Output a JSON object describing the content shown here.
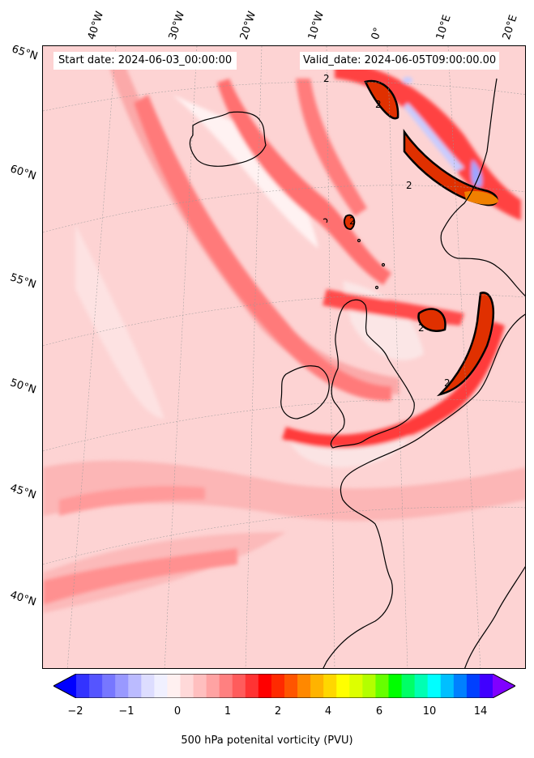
{
  "header": {
    "start_date": "Start date: 2024-06-03_00:00:00",
    "valid_date": "Valid_date: 2024-06-05T09:00:00.00"
  },
  "map": {
    "longitude_labels": [
      "40°W",
      "30°W",
      "20°W",
      "10°W",
      "0°",
      "10°E",
      "20°E"
    ],
    "latitude_labels": [
      "65°N",
      "60°N",
      "55°N",
      "50°N",
      "45°N",
      "40°N"
    ],
    "contour_label": "2",
    "background_color": "#fdd6d6"
  },
  "colorbar": {
    "ticks": [
      "−2",
      "−1",
      "0",
      "1",
      "2",
      "4",
      "6",
      "10",
      "14"
    ],
    "title": "500 hPa potenital vorticity (PVU)",
    "colors": [
      "#0000ff",
      "#3333ff",
      "#5555ff",
      "#7777ff",
      "#9999ff",
      "#bbbbff",
      "#ddddff",
      "#f0f0ff",
      "#fff0f0",
      "#ffd9d9",
      "#ffbfbf",
      "#ffa3a3",
      "#ff8080",
      "#ff5c5c",
      "#ff3333",
      "#ff0000",
      "#ff2a00",
      "#ff5500",
      "#ff8800",
      "#ffb300",
      "#ffd700",
      "#ffff00",
      "#ddff00",
      "#b3ff00",
      "#66ff00",
      "#00ff00",
      "#00ff66",
      "#00ffb3",
      "#00ffff",
      "#00bfff",
      "#0080ff",
      "#0040ff",
      "#4000ff",
      "#8000ff"
    ]
  }
}
